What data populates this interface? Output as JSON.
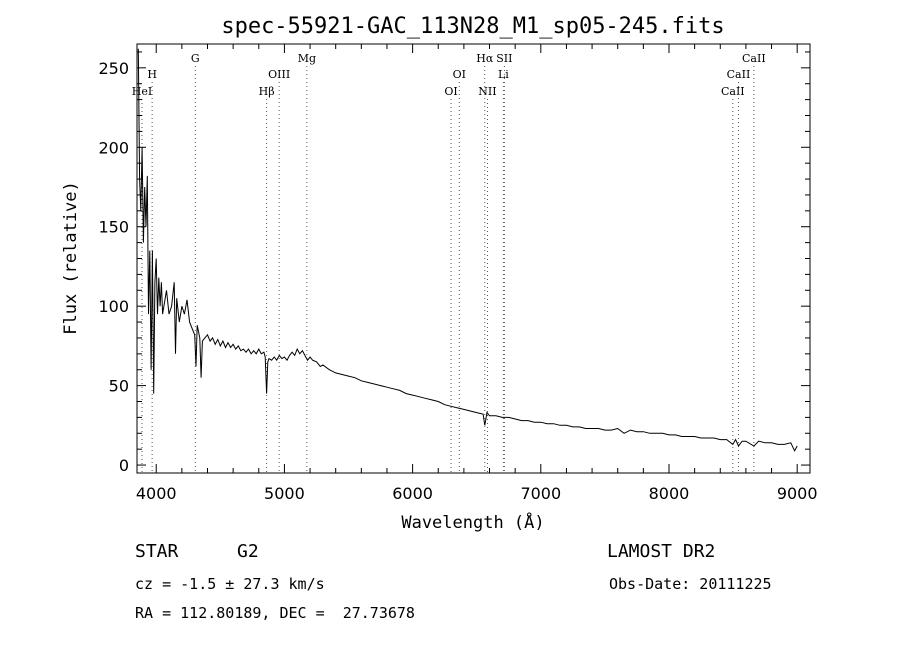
{
  "chart_data": {
    "type": "line",
    "title": "spec-55921-GAC_113N28_M1_sp05-245.fits",
    "xlabel": "Wavelength (Å)",
    "ylabel": "Flux (relative)",
    "xlim": [
      3850,
      9100
    ],
    "ylim": [
      -5,
      265
    ],
    "x_ticks": [
      "4000",
      "5000",
      "6000",
      "7000",
      "8000",
      "9000"
    ],
    "y_ticks": [
      "0",
      "50",
      "100",
      "150",
      "200",
      "250"
    ],
    "series": [
      {
        "points": [
          [
            3860,
            262
          ],
          [
            3870,
            180
          ],
          [
            3880,
            160
          ],
          [
            3890,
            200
          ],
          [
            3900,
            140
          ],
          [
            3910,
            175
          ],
          [
            3920,
            150
          ],
          [
            3930,
            182
          ],
          [
            3940,
            95
          ],
          [
            3950,
            135
          ],
          [
            3960,
            60
          ],
          [
            3970,
            135
          ],
          [
            3980,
            45
          ],
          [
            3990,
            115
          ],
          [
            4000,
            130
          ],
          [
            4010,
            95
          ],
          [
            4020,
            118
          ],
          [
            4030,
            100
          ],
          [
            4040,
            115
          ],
          [
            4050,
            95
          ],
          [
            4060,
            100
          ],
          [
            4080,
            110
          ],
          [
            4100,
            95
          ],
          [
            4120,
            100
          ],
          [
            4140,
            115
          ],
          [
            4150,
            70
          ],
          [
            4160,
            105
          ],
          [
            4180,
            90
          ],
          [
            4200,
            100
          ],
          [
            4220,
            95
          ],
          [
            4240,
            104
          ],
          [
            4260,
            90
          ],
          [
            4280,
            86
          ],
          [
            4300,
            82
          ],
          [
            4310,
            62
          ],
          [
            4320,
            88
          ],
          [
            4340,
            80
          ],
          [
            4350,
            55
          ],
          [
            4360,
            78
          ],
          [
            4380,
            80
          ],
          [
            4400,
            82
          ],
          [
            4420,
            78
          ],
          [
            4440,
            80
          ],
          [
            4460,
            76
          ],
          [
            4480,
            79
          ],
          [
            4500,
            75
          ],
          [
            4520,
            78
          ],
          [
            4540,
            74
          ],
          [
            4560,
            77
          ],
          [
            4580,
            74
          ],
          [
            4600,
            76
          ],
          [
            4620,
            73
          ],
          [
            4640,
            75
          ],
          [
            4660,
            72
          ],
          [
            4680,
            73
          ],
          [
            4700,
            71
          ],
          [
            4720,
            73
          ],
          [
            4740,
            70
          ],
          [
            4760,
            72
          ],
          [
            4780,
            70
          ],
          [
            4800,
            73
          ],
          [
            4820,
            70
          ],
          [
            4840,
            71
          ],
          [
            4850,
            68
          ],
          [
            4861,
            45
          ],
          [
            4870,
            65
          ],
          [
            4880,
            67
          ],
          [
            4900,
            66
          ],
          [
            4920,
            68
          ],
          [
            4940,
            66
          ],
          [
            4960,
            69
          ],
          [
            4980,
            67
          ],
          [
            5000,
            68
          ],
          [
            5020,
            66
          ],
          [
            5040,
            69
          ],
          [
            5060,
            71
          ],
          [
            5080,
            69
          ],
          [
            5100,
            73
          ],
          [
            5120,
            70
          ],
          [
            5140,
            72
          ],
          [
            5160,
            69
          ],
          [
            5180,
            66
          ],
          [
            5200,
            68
          ],
          [
            5220,
            66
          ],
          [
            5250,
            65
          ],
          [
            5280,
            62
          ],
          [
            5300,
            63
          ],
          [
            5350,
            60
          ],
          [
            5400,
            58
          ],
          [
            5450,
            57
          ],
          [
            5500,
            56
          ],
          [
            5550,
            55
          ],
          [
            5600,
            53
          ],
          [
            5650,
            52
          ],
          [
            5700,
            51
          ],
          [
            5750,
            50
          ],
          [
            5800,
            49
          ],
          [
            5850,
            48
          ],
          [
            5900,
            47
          ],
          [
            5950,
            45
          ],
          [
            6000,
            44
          ],
          [
            6050,
            43
          ],
          [
            6100,
            42
          ],
          [
            6150,
            41
          ],
          [
            6200,
            40
          ],
          [
            6250,
            38
          ],
          [
            6300,
            37
          ],
          [
            6350,
            36
          ],
          [
            6400,
            35
          ],
          [
            6450,
            34
          ],
          [
            6500,
            33
          ],
          [
            6550,
            32
          ],
          [
            6563,
            25
          ],
          [
            6580,
            33
          ],
          [
            6600,
            31
          ],
          [
            6650,
            31
          ],
          [
            6700,
            30
          ],
          [
            6750,
            30
          ],
          [
            6800,
            29
          ],
          [
            6850,
            28
          ],
          [
            6900,
            28
          ],
          [
            6950,
            27
          ],
          [
            7000,
            27
          ],
          [
            7050,
            26
          ],
          [
            7100,
            26
          ],
          [
            7150,
            25
          ],
          [
            7200,
            25
          ],
          [
            7250,
            24
          ],
          [
            7300,
            24
          ],
          [
            7350,
            23
          ],
          [
            7400,
            23
          ],
          [
            7450,
            23
          ],
          [
            7500,
            22
          ],
          [
            7550,
            22
          ],
          [
            7600,
            23
          ],
          [
            7650,
            20
          ],
          [
            7700,
            22
          ],
          [
            7750,
            21
          ],
          [
            7800,
            21
          ],
          [
            7850,
            20
          ],
          [
            7900,
            20
          ],
          [
            7950,
            20
          ],
          [
            8000,
            19
          ],
          [
            8050,
            19
          ],
          [
            8100,
            18
          ],
          [
            8150,
            18
          ],
          [
            8200,
            18
          ],
          [
            8250,
            17
          ],
          [
            8300,
            17
          ],
          [
            8350,
            17
          ],
          [
            8400,
            16
          ],
          [
            8450,
            16
          ],
          [
            8498,
            13
          ],
          [
            8520,
            16
          ],
          [
            8542,
            12
          ],
          [
            8570,
            15
          ],
          [
            8600,
            15
          ],
          [
            8662,
            12
          ],
          [
            8700,
            15
          ],
          [
            8750,
            14
          ],
          [
            8800,
            14
          ],
          [
            8850,
            13
          ],
          [
            8900,
            13
          ],
          [
            8950,
            14
          ],
          [
            8980,
            9
          ],
          [
            9000,
            12
          ]
        ]
      }
    ],
    "spectral_lines": [
      {
        "label": "HeI",
        "wavelength": 3889,
        "row": 2
      },
      {
        "label": "H",
        "wavelength": 3968,
        "row": 1
      },
      {
        "label": "G",
        "wavelength": 4305,
        "row": 0
      },
      {
        "label": "Hβ",
        "wavelength": 4861,
        "row": 2
      },
      {
        "label": "OIII",
        "wavelength": 4959,
        "row": 1
      },
      {
        "label": "Mg",
        "wavelength": 5175,
        "row": 0
      },
      {
        "label": "OI",
        "wavelength": 6300,
        "row": 2
      },
      {
        "label": "OI",
        "wavelength": 6364,
        "row": 1
      },
      {
        "label": "Hα",
        "wavelength": 6563,
        "row": 0
      },
      {
        "label": "NII",
        "wavelength": 6584,
        "row": 2
      },
      {
        "label": "SII",
        "wavelength": 6716,
        "row": 0
      },
      {
        "label": "Li",
        "wavelength": 6708,
        "row": 1
      },
      {
        "label": "CaII",
        "wavelength": 8498,
        "row": 2
      },
      {
        "label": "CaII",
        "wavelength": 8542,
        "row": 1
      },
      {
        "label": "CaII",
        "wavelength": 8662,
        "row": 0
      }
    ]
  },
  "info": {
    "class": "STAR",
    "subclass": "G2",
    "survey": "LAMOST DR2",
    "velocity": "cz = -1.5 ± 27.3 km/s",
    "obs_date": "Obs-Date: 20111225",
    "coords": "RA = 112.80189, DEC =  27.73678"
  }
}
